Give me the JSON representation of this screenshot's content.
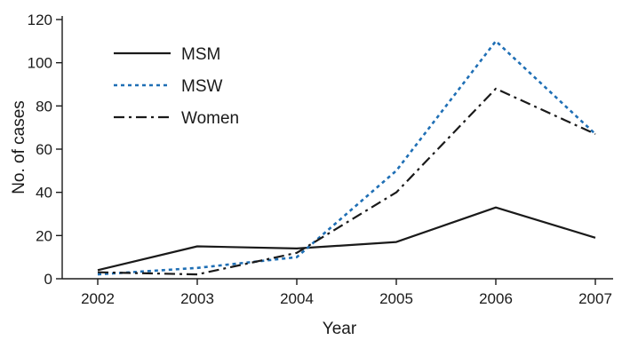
{
  "chart_data": {
    "type": "line",
    "title": "",
    "xlabel": "Year",
    "ylabel": "No. of cases",
    "x": [
      "2002",
      "2003",
      "2004",
      "2005",
      "2006",
      "2007"
    ],
    "yticks": [
      0,
      20,
      40,
      60,
      80,
      100,
      120
    ],
    "ylim": [
      0,
      120
    ],
    "grid": false,
    "legend_position": "top-left",
    "series": [
      {
        "name": "MSM",
        "values": [
          4,
          15,
          14,
          17,
          33,
          19
        ],
        "color": "#1a1a1a",
        "style": "solid"
      },
      {
        "name": "MSW",
        "values": [
          2,
          5,
          10,
          50,
          110,
          67
        ],
        "color": "#1f6fb5",
        "style": "dotted"
      },
      {
        "name": "Women",
        "values": [
          3,
          2,
          12,
          40,
          88,
          67
        ],
        "color": "#1a1a1a",
        "style": "dashdot"
      }
    ]
  }
}
